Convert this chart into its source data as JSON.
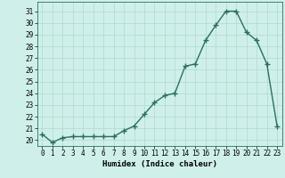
{
  "x": [
    0,
    1,
    2,
    3,
    4,
    5,
    6,
    7,
    8,
    9,
    10,
    11,
    12,
    13,
    14,
    15,
    16,
    17,
    18,
    19,
    20,
    21,
    22,
    23
  ],
  "y": [
    20.5,
    19.8,
    20.2,
    20.3,
    20.3,
    20.3,
    20.3,
    20.3,
    20.8,
    21.2,
    22.2,
    23.2,
    23.8,
    24.0,
    26.3,
    26.5,
    28.5,
    29.8,
    31.0,
    31.0,
    29.2,
    28.5,
    26.5,
    21.2
  ],
  "xlabel": "Humidex (Indice chaleur)",
  "ylim": [
    19.5,
    31.8
  ],
  "xlim": [
    -0.5,
    23.5
  ],
  "yticks": [
    20,
    21,
    22,
    23,
    24,
    25,
    26,
    27,
    28,
    29,
    30,
    31
  ],
  "xticks": [
    0,
    1,
    2,
    3,
    4,
    5,
    6,
    7,
    8,
    9,
    10,
    11,
    12,
    13,
    14,
    15,
    16,
    17,
    18,
    19,
    20,
    21,
    22,
    23
  ],
  "line_color": "#2a6e64",
  "marker": "+",
  "marker_size": 4,
  "bg_color": "#cff0ea",
  "grid_color": "#b0d8d0",
  "xlabel_fontsize": 6.5,
  "tick_fontsize": 5.5,
  "linewidth": 1.0
}
